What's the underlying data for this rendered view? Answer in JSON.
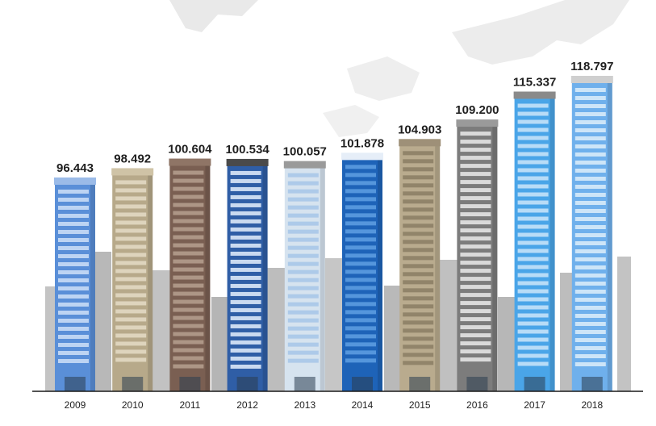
{
  "chart_data": {
    "type": "bar",
    "title": "",
    "xlabel": "",
    "ylabel": "",
    "categories": [
      "2009",
      "2010",
      "2011",
      "2012",
      "2013",
      "2014",
      "2015",
      "2016",
      "2017",
      "2018"
    ],
    "values": [
      96.443,
      98.492,
      100.604,
      100.534,
      100.057,
      101.878,
      104.903,
      109.2,
      115.337,
      118.797
    ],
    "value_labels": [
      "96.443",
      "98.492",
      "100.604",
      "100.534",
      "100.057",
      "101.878",
      "104.903",
      "109.200",
      "115.337",
      "118.797"
    ],
    "style": "buildings"
  },
  "colors": {
    "background": "#ffffff",
    "backdrop": "#bdbdbd",
    "axis": "#1a1a1a",
    "text": "#1f1f1f"
  },
  "buildings": [
    {
      "body": "#5a8fd8",
      "win": "#c8dcf6",
      "top": "#9bbbe8"
    },
    {
      "body": "#b7a98a",
      "win": "#e2d8c2",
      "top": "#cfc3a6"
    },
    {
      "body": "#7a5f52",
      "win": "#b39c8c",
      "top": "#8f7566"
    },
    {
      "body": "#2f5ea6",
      "win": "#dce8f8",
      "top": "#4a4a4a"
    },
    {
      "body": "#d6e3ef",
      "win": "#a9c7e8",
      "top": "#9a9a9a"
    },
    {
      "body": "#1e63b8",
      "win": "#5b9be0",
      "top": "#e6eef8"
    },
    {
      "body": "#b9ab8e",
      "win": "#8d7f66",
      "top": "#9e9078"
    },
    {
      "body": "#7c7c7c",
      "win": "#e4e4e4",
      "top": "#9a9a9a"
    },
    {
      "body": "#4aa5e8",
      "win": "#c4e2f8",
      "top": "#8a8a8a"
    },
    {
      "body": "#6fb0ec",
      "win": "#d7ebfa",
      "top": "#cfcfcf"
    }
  ]
}
